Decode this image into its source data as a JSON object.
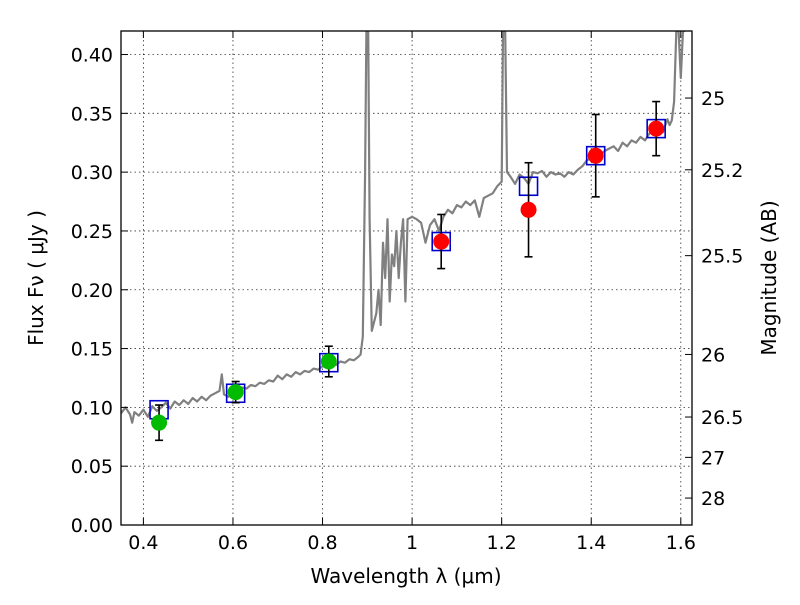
{
  "chart_data": {
    "type": "scatter",
    "xlabel": "Wavelength  λ (μm)",
    "ylabel": "Flux  Fν  ( μJy )",
    "ylabel_right": "Magnitude (AB)",
    "xlim": [
      0.35,
      1.625
    ],
    "ylim": [
      0.0,
      0.42
    ],
    "grid": true,
    "x_ticks": [
      {
        "value": 0.4,
        "label": "0.4"
      },
      {
        "value": 0.6,
        "label": "0.6"
      },
      {
        "value": 0.8,
        "label": "0.8"
      },
      {
        "value": 1.0,
        "label": "1"
      },
      {
        "value": 1.2,
        "label": "1.2"
      },
      {
        "value": 1.4,
        "label": "1.4"
      },
      {
        "value": 1.6,
        "label": "1.6"
      }
    ],
    "y_ticks": [
      {
        "value": 0.0,
        "label": "0.00"
      },
      {
        "value": 0.05,
        "label": "0.05"
      },
      {
        "value": 0.1,
        "label": "0.10"
      },
      {
        "value": 0.15,
        "label": "0.15"
      },
      {
        "value": 0.2,
        "label": "0.20"
      },
      {
        "value": 0.25,
        "label": "0.25"
      },
      {
        "value": 0.3,
        "label": "0.30"
      },
      {
        "value": 0.35,
        "label": "0.35"
      },
      {
        "value": 0.4,
        "label": "0.40"
      }
    ],
    "mag_ticks": [
      {
        "label": "25",
        "flux": 0.363
      },
      {
        "label": "25.2",
        "flux": 0.302
      },
      {
        "label": "25.5",
        "flux": 0.229
      },
      {
        "label": "26",
        "flux": 0.145
      },
      {
        "label": "26.5",
        "flux": 0.0918
      },
      {
        "label": "27",
        "flux": 0.0575
      },
      {
        "label": "28",
        "flux": 0.0229
      }
    ],
    "series": [
      {
        "kind": "model-spectrum",
        "color": "#808080",
        "points": [
          [
            0.35,
            0.095
          ],
          [
            0.36,
            0.1
          ],
          [
            0.37,
            0.094
          ],
          [
            0.375,
            0.087
          ],
          [
            0.38,
            0.096
          ],
          [
            0.39,
            0.093
          ],
          [
            0.4,
            0.098
          ],
          [
            0.41,
            0.092
          ],
          [
            0.42,
            0.101
          ],
          [
            0.43,
            0.097
          ],
          [
            0.44,
            0.1
          ],
          [
            0.45,
            0.104
          ],
          [
            0.46,
            0.099
          ],
          [
            0.47,
            0.105
          ],
          [
            0.48,
            0.102
          ],
          [
            0.49,
            0.106
          ],
          [
            0.5,
            0.103
          ],
          [
            0.51,
            0.108
          ],
          [
            0.52,
            0.105
          ],
          [
            0.53,
            0.109
          ],
          [
            0.54,
            0.106
          ],
          [
            0.55,
            0.11
          ],
          [
            0.56,
            0.112
          ],
          [
            0.57,
            0.114
          ],
          [
            0.575,
            0.128
          ],
          [
            0.58,
            0.111
          ],
          [
            0.59,
            0.109
          ],
          [
            0.6,
            0.112
          ],
          [
            0.61,
            0.115
          ],
          [
            0.62,
            0.117
          ],
          [
            0.63,
            0.116
          ],
          [
            0.64,
            0.119
          ],
          [
            0.65,
            0.118
          ],
          [
            0.66,
            0.121
          ],
          [
            0.67,
            0.12
          ],
          [
            0.68,
            0.123
          ],
          [
            0.69,
            0.122
          ],
          [
            0.7,
            0.127
          ],
          [
            0.71,
            0.124
          ],
          [
            0.72,
            0.128
          ],
          [
            0.73,
            0.126
          ],
          [
            0.74,
            0.13
          ],
          [
            0.75,
            0.128
          ],
          [
            0.76,
            0.131
          ],
          [
            0.77,
            0.13
          ],
          [
            0.78,
            0.133
          ],
          [
            0.79,
            0.132
          ],
          [
            0.8,
            0.135
          ],
          [
            0.81,
            0.134
          ],
          [
            0.82,
            0.137
          ],
          [
            0.83,
            0.136
          ],
          [
            0.84,
            0.139
          ],
          [
            0.85,
            0.138
          ],
          [
            0.86,
            0.141
          ],
          [
            0.87,
            0.14
          ],
          [
            0.88,
            0.143
          ],
          [
            0.885,
            0.145
          ],
          [
            0.89,
            0.16
          ],
          [
            0.895,
            0.3
          ],
          [
            0.898,
            0.42
          ],
          [
            0.902,
            0.42
          ],
          [
            0.905,
            0.26
          ],
          [
            0.91,
            0.165
          ],
          [
            0.92,
            0.18
          ],
          [
            0.925,
            0.2
          ],
          [
            0.93,
            0.17
          ],
          [
            0.935,
            0.24
          ],
          [
            0.94,
            0.21
          ],
          [
            0.945,
            0.26
          ],
          [
            0.95,
            0.19
          ],
          [
            0.955,
            0.23
          ],
          [
            0.96,
            0.22
          ],
          [
            0.965,
            0.25
          ],
          [
            0.97,
            0.21
          ],
          [
            0.975,
            0.24
          ],
          [
            0.98,
            0.26
          ],
          [
            0.985,
            0.19
          ],
          [
            0.99,
            0.26
          ],
          [
            1.0,
            0.262
          ],
          [
            1.01,
            0.26
          ],
          [
            1.02,
            0.257
          ],
          [
            1.03,
            0.24
          ],
          [
            1.04,
            0.255
          ],
          [
            1.05,
            0.26
          ],
          [
            1.06,
            0.25
          ],
          [
            1.07,
            0.262
          ],
          [
            1.08,
            0.268
          ],
          [
            1.09,
            0.265
          ],
          [
            1.1,
            0.272
          ],
          [
            1.11,
            0.27
          ],
          [
            1.12,
            0.275
          ],
          [
            1.13,
            0.272
          ],
          [
            1.14,
            0.276
          ],
          [
            1.15,
            0.262
          ],
          [
            1.16,
            0.278
          ],
          [
            1.17,
            0.28
          ],
          [
            1.18,
            0.282
          ],
          [
            1.19,
            0.288
          ],
          [
            1.2,
            0.292
          ],
          [
            1.203,
            0.42
          ],
          [
            1.208,
            0.42
          ],
          [
            1.212,
            0.3
          ],
          [
            1.22,
            0.296
          ],
          [
            1.23,
            0.29
          ],
          [
            1.24,
            0.298
          ],
          [
            1.25,
            0.295
          ],
          [
            1.26,
            0.29
          ],
          [
            1.27,
            0.3
          ],
          [
            1.28,
            0.299
          ],
          [
            1.29,
            0.301
          ],
          [
            1.3,
            0.296
          ],
          [
            1.31,
            0.3
          ],
          [
            1.32,
            0.298
          ],
          [
            1.33,
            0.299
          ],
          [
            1.34,
            0.296
          ],
          [
            1.35,
            0.3
          ],
          [
            1.36,
            0.298
          ],
          [
            1.37,
            0.302
          ],
          [
            1.38,
            0.305
          ],
          [
            1.39,
            0.31
          ],
          [
            1.4,
            0.312
          ],
          [
            1.41,
            0.314
          ],
          [
            1.42,
            0.315
          ],
          [
            1.43,
            0.318
          ],
          [
            1.44,
            0.32
          ],
          [
            1.45,
            0.322
          ],
          [
            1.46,
            0.318
          ],
          [
            1.47,
            0.325
          ],
          [
            1.48,
            0.322
          ],
          [
            1.49,
            0.327
          ],
          [
            1.5,
            0.325
          ],
          [
            1.51,
            0.33
          ],
          [
            1.52,
            0.327
          ],
          [
            1.53,
            0.333
          ],
          [
            1.54,
            0.334
          ],
          [
            1.55,
            0.336
          ],
          [
            1.56,
            0.334
          ],
          [
            1.57,
            0.345
          ],
          [
            1.575,
            0.34
          ],
          [
            1.58,
            0.344
          ],
          [
            1.585,
            0.36
          ],
          [
            1.59,
            0.42
          ],
          [
            1.595,
            0.42
          ],
          [
            1.6,
            0.38
          ],
          [
            1.605,
            0.42
          ],
          [
            1.61,
            0.42
          ]
        ]
      },
      {
        "kind": "model-band-flux",
        "color": "#0000cc",
        "x": [
          0.435,
          0.606,
          0.814,
          1.065,
          1.26,
          1.41,
          1.545
        ],
        "y": [
          0.098,
          0.112,
          0.138,
          0.241,
          0.288,
          0.314,
          0.337
        ]
      },
      {
        "kind": "observed-optical",
        "color": "#00bb00",
        "x": [
          0.435,
          0.606,
          0.814
        ],
        "y": [
          0.087,
          0.113,
          0.139
        ],
        "err": [
          0.015,
          0.009,
          0.013
        ]
      },
      {
        "kind": "observed-nir",
        "color": "#ff0000",
        "x": [
          1.065,
          1.26,
          1.41,
          1.545
        ],
        "y": [
          0.241,
          0.268,
          0.314,
          0.337
        ],
        "err": [
          0.023,
          0.04,
          0.035,
          0.023
        ]
      }
    ]
  }
}
